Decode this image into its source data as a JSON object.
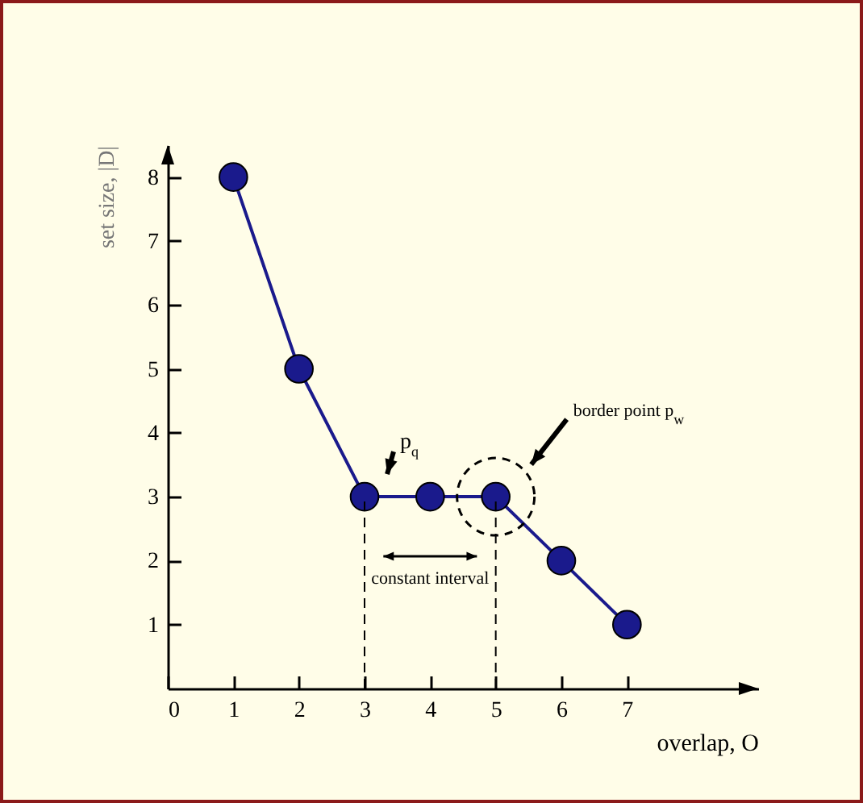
{
  "chart_data": {
    "type": "line",
    "xlabel": "overlap, O",
    "ylabel": "set size, |D|",
    "x": [
      1,
      2,
      3,
      4,
      5,
      6,
      7
    ],
    "series": [
      {
        "color": "#1a1a8c",
        "values": [
          8,
          5,
          3,
          3,
          3,
          2,
          1
        ]
      }
    ],
    "xlim": [
      0,
      9
    ],
    "ylim": [
      0,
      8.5
    ],
    "xticks": [
      0,
      1,
      2,
      3,
      4,
      5,
      6,
      7
    ],
    "yticks": [
      1,
      2,
      3,
      4,
      5,
      6,
      7,
      8
    ],
    "marker": "circle",
    "line_style": "solid",
    "ref_lines": [
      {
        "axis": "x",
        "value": 3,
        "line_style": "dashed",
        "color": "#000000"
      },
      {
        "axis": "x",
        "value": 5,
        "line_style": "dashed",
        "color": "#000000"
      }
    ],
    "annotations": [
      {
        "text": "p$_{q}$",
        "x": 3,
        "y": 3
      },
      "border point  p$_{w}$",
      "constant interval"
    ]
  }
}
